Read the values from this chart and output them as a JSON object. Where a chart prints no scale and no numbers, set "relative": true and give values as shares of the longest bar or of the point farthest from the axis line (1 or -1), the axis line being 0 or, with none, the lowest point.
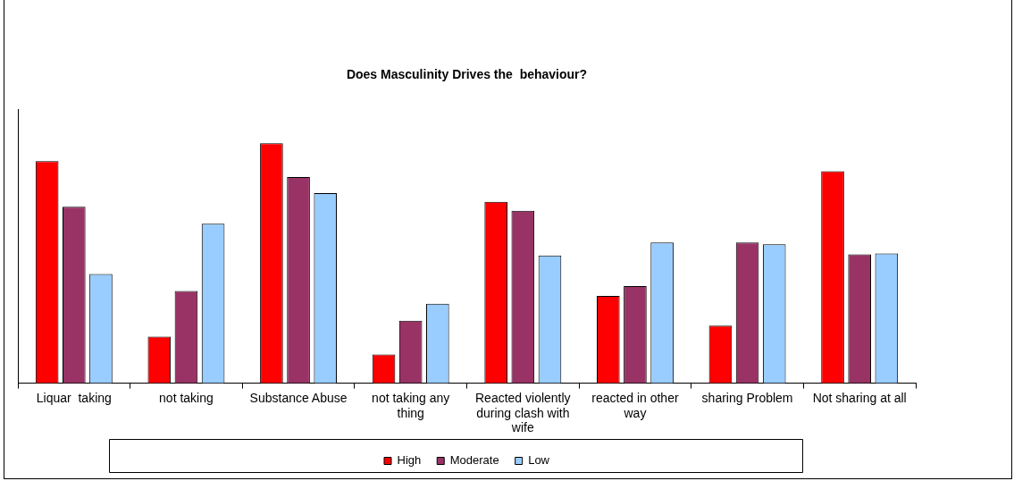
{
  "chart_data": {
    "type": "bar",
    "title": "Does Masculinity Drives the  behaviour?",
    "relative": true,
    "categories": [
      "Liquar  taking",
      "not taking",
      "Substance Abuse",
      "not taking any thing",
      "Reacted violently during clash with wife",
      "reacted in other way",
      "sharing Problem",
      "Not sharing at all"
    ],
    "series": [
      {
        "name": "High",
        "color": "#ff0000",
        "values": [
          0.926,
          0.194,
          1,
          0.12,
          0.756,
          0.364,
          0.24,
          0.884
        ]
      },
      {
        "name": "Moderate",
        "color": "#993366",
        "values": [
          0.736,
          0.384,
          0.86,
          0.26,
          0.719,
          0.405,
          0.587,
          0.537
        ]
      },
      {
        "name": "Low",
        "color": "#99ccff",
        "values": [
          0.455,
          0.665,
          0.793,
          0.331,
          0.533,
          0.587,
          0.579,
          0.541
        ]
      }
    ],
    "legend": "bottom",
    "grid": false
  }
}
